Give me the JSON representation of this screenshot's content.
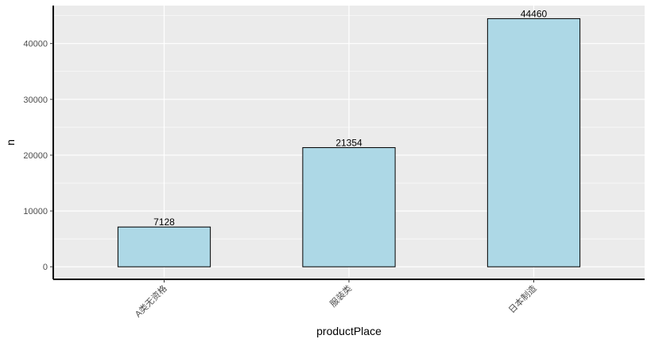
{
  "chart_data": {
    "type": "bar",
    "categories": [
      "A类无资格",
      "服装类",
      "日本制造"
    ],
    "values": [
      7128,
      21354,
      44460
    ],
    "data_labels": [
      "7128",
      "21354",
      "44460"
    ],
    "xlabel": "productPlace",
    "ylabel": "n",
    "ylim": [
      -2250,
      46800
    ],
    "yticks": [
      0,
      10000,
      20000,
      30000,
      40000
    ],
    "ytick_labels": [
      "0",
      "10000",
      "20000",
      "30000",
      "40000"
    ],
    "grid": true,
    "legend": "none",
    "bar_color": "#add8e6",
    "bar_edge_color": "#000000",
    "panel_color": "#ebebeb",
    "grid_color": "#ffffff"
  }
}
